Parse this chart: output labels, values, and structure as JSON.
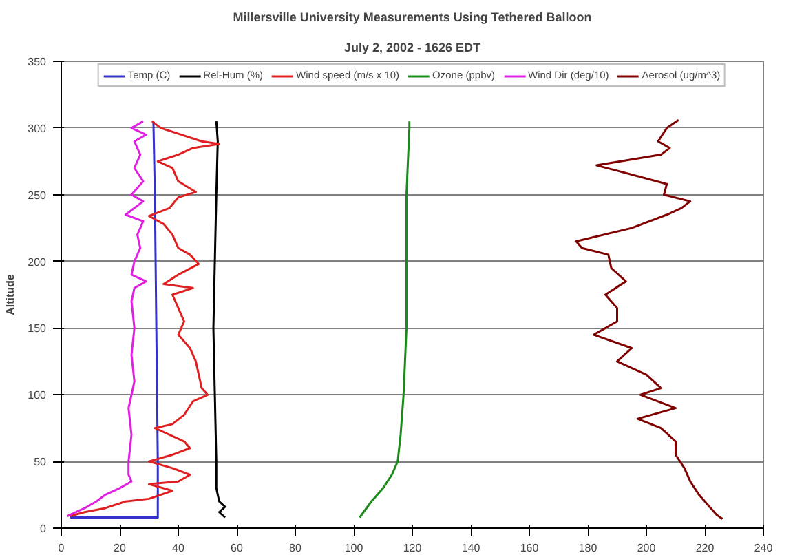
{
  "chart_data": {
    "type": "line",
    "title": "Millersville University Measurements Using Tethered Balloon",
    "subtitle": "July 2, 2002 - 1626 EDT",
    "ylabel": "Altitude",
    "xlim": [
      0,
      240
    ],
    "xticks": [
      0,
      20,
      40,
      60,
      80,
      100,
      120,
      140,
      160,
      180,
      200,
      220,
      240
    ],
    "ylim": [
      0,
      350
    ],
    "yticks": [
      0,
      50,
      100,
      150,
      200,
      250,
      300,
      350
    ],
    "grid": "y",
    "legend": "top",
    "line_style": "solid",
    "series": [
      {
        "name": "Temp (C)",
        "color": "#3333cc",
        "x": [
          3,
          33,
          33,
          32.5,
          32,
          31.5
        ],
        "values": [
          8,
          8,
          50,
          150,
          250,
          305
        ]
      },
      {
        "name": "Rel-Hum (%)",
        "color": "#000000",
        "x": [
          56,
          54,
          56,
          54,
          53,
          53,
          52.5,
          52,
          52.5,
          53,
          53.5,
          53
        ],
        "values": [
          8,
          12,
          16,
          20,
          30,
          50,
          100,
          150,
          200,
          250,
          290,
          305
        ]
      },
      {
        "name": "Wind speed (m/s x 10)",
        "color": "#e02020",
        "x": [
          3,
          8,
          15,
          22,
          30,
          38,
          30,
          40,
          44,
          38,
          30,
          38,
          44,
          42,
          32,
          38,
          42,
          45,
          50,
          48,
          47,
          46,
          44,
          40,
          42,
          40,
          38,
          45,
          35,
          40,
          47,
          44,
          40,
          38,
          35,
          30,
          37,
          40,
          46,
          40,
          38,
          33,
          40,
          45,
          54,
          48,
          34,
          31
        ],
        "values": [
          9,
          12,
          15,
          20,
          22,
          28,
          33,
          35,
          40,
          45,
          50,
          55,
          60,
          65,
          75,
          78,
          85,
          95,
          100,
          105,
          115,
          125,
          135,
          145,
          155,
          165,
          175,
          180,
          183,
          190,
          198,
          205,
          210,
          220,
          228,
          234,
          240,
          248,
          252,
          260,
          270,
          275,
          280,
          285,
          288,
          290,
          300,
          305
        ]
      },
      {
        "name": "Ozone (ppbv)",
        "color": "#1a8a1a",
        "x": [
          102,
          106,
          110,
          113,
          115,
          116,
          117,
          118,
          118,
          118,
          119,
          119
        ],
        "values": [
          8,
          20,
          30,
          40,
          50,
          70,
          100,
          150,
          200,
          250,
          300,
          305
        ]
      },
      {
        "name": "Wind Dir (deg/10)",
        "color": "#e020e0",
        "x": [
          2,
          3,
          8,
          12,
          15,
          20,
          24,
          23,
          23,
          24,
          23,
          25,
          24,
          25,
          24,
          25,
          29,
          24,
          25,
          27,
          26,
          28,
          22,
          28,
          24,
          28,
          25,
          27,
          25,
          29,
          24,
          28
        ],
        "values": [
          9,
          10,
          15,
          20,
          25,
          30,
          35,
          40,
          50,
          70,
          90,
          110,
          130,
          150,
          170,
          180,
          185,
          190,
          200,
          210,
          220,
          230,
          235,
          245,
          250,
          260,
          270,
          280,
          290,
          295,
          300,
          305
        ]
      },
      {
        "name": "Aerosol (ug/m^3)",
        "color": "#800000",
        "x": [
          226,
          224,
          222,
          218,
          215,
          213,
          210,
          210,
          205,
          197,
          210,
          198,
          205,
          200,
          190,
          195,
          182,
          190,
          190,
          186,
          193,
          188,
          187,
          178,
          176,
          195,
          207,
          212,
          215,
          206,
          207,
          190,
          183,
          205,
          208,
          204,
          207,
          211
        ],
        "values": [
          7,
          10,
          15,
          25,
          35,
          45,
          55,
          65,
          75,
          82,
          90,
          100,
          105,
          115,
          125,
          135,
          145,
          155,
          165,
          175,
          185,
          195,
          205,
          210,
          215,
          225,
          235,
          240,
          245,
          250,
          258,
          268,
          272,
          280,
          285,
          290,
          300,
          306
        ]
      }
    ]
  }
}
